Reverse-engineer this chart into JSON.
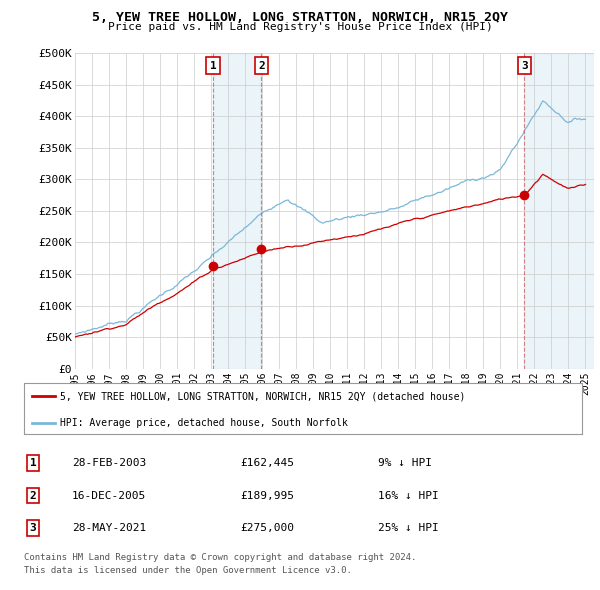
{
  "title": "5, YEW TREE HOLLOW, LONG STRATTON, NORWICH, NR15 2QY",
  "subtitle": "Price paid vs. HM Land Registry's House Price Index (HPI)",
  "ylim": [
    0,
    500000
  ],
  "yticks": [
    0,
    50000,
    100000,
    150000,
    200000,
    250000,
    300000,
    350000,
    400000,
    450000,
    500000
  ],
  "ytick_labels": [
    "£0",
    "£50K",
    "£100K",
    "£150K",
    "£200K",
    "£250K",
    "£300K",
    "£350K",
    "£400K",
    "£450K",
    "£500K"
  ],
  "hpi_color": "#7ab8d9",
  "hpi_fill_color": "#c8dff0",
  "price_color": "#cc0000",
  "legend_label_price": "5, YEW TREE HOLLOW, LONG STRATTON, NORWICH, NR15 2QY (detached house)",
  "legend_label_hpi": "HPI: Average price, detached house, South Norfolk",
  "sales": [
    {
      "num": 1,
      "date": "28-FEB-2003",
      "price": 162445,
      "pct": "9%",
      "dir": "↓",
      "year": 2003.12
    },
    {
      "num": 2,
      "date": "16-DEC-2005",
      "price": 189995,
      "pct": "16%",
      "dir": "↓",
      "year": 2005.96
    },
    {
      "num": 3,
      "date": "28-MAY-2021",
      "price": 275000,
      "pct": "25%",
      "dir": "↓",
      "year": 2021.41
    }
  ],
  "footer1": "Contains HM Land Registry data © Crown copyright and database right 2024.",
  "footer2": "This data is licensed under the Open Government Licence v3.0.",
  "background_color": "#ffffff",
  "grid_color": "#cccccc",
  "xlim_start": 1995,
  "xlim_end": 2025.5
}
